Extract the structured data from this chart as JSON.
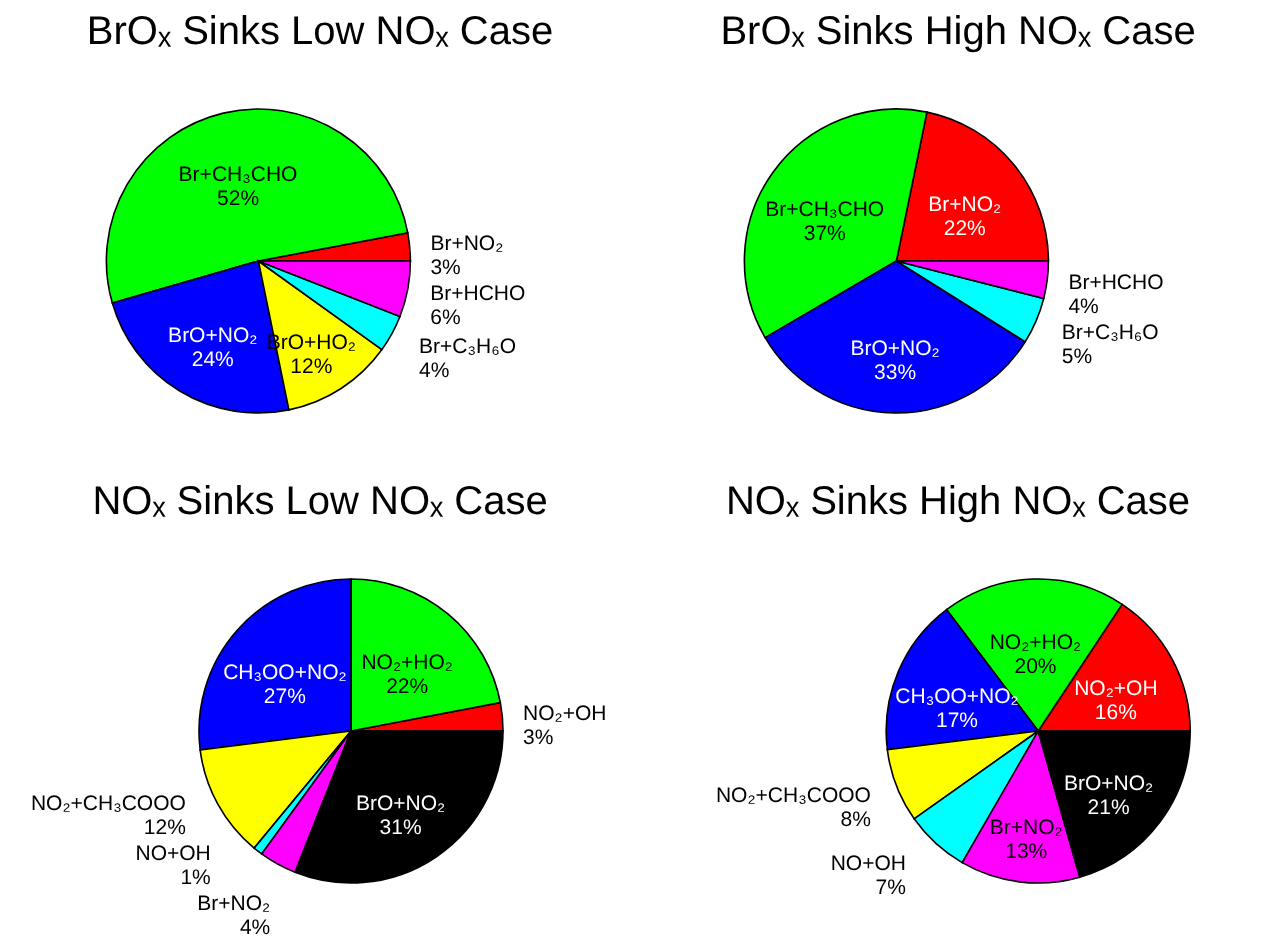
{
  "chart_data": [
    {
      "type": "pie",
      "title": "BrOₓ Sinks Low NOₓ Case",
      "categories": [
        "Br+NO₂",
        "Br+CH₃CHO",
        "BrO+NO₂",
        "BrO+HO₂",
        "Br+C₃H₆O",
        "Br+HCHO"
      ],
      "values": [
        3,
        52,
        24,
        12,
        4,
        6
      ],
      "value_labels": [
        "3%",
        "52%",
        "24%",
        "12%",
        "4%",
        "6%"
      ],
      "colors": [
        "#ff0000",
        "#00ff00",
        "#0000ff",
        "#ffff00",
        "#00ffff",
        "#ff00ff"
      ]
    },
    {
      "type": "pie",
      "title": "BrOₓ Sinks High NOₓ Case",
      "categories": [
        "Br+NO₂",
        "Br+CH₃CHO",
        "BrO+NO₂",
        "Br+C₃H₆O",
        "Br+HCHO"
      ],
      "values": [
        22,
        37,
        33,
        5,
        4
      ],
      "value_labels": [
        "22%",
        "37%",
        "33%",
        "5%",
        "4%"
      ],
      "colors": [
        "#ff0000",
        "#00ff00",
        "#0000ff",
        "#00ffff",
        "#ff00ff"
      ]
    },
    {
      "type": "pie",
      "title": "NOₓ Sinks Low NOₓ Case",
      "categories": [
        "NO₂+OH",
        "NO₂+HO₂",
        "CH₃OO+NO₂",
        "NO₂+CH₃COOO",
        "NO+OH",
        "Br+NO₂",
        "BrO+NO₂"
      ],
      "values": [
        3,
        22,
        27,
        12,
        1,
        4,
        31
      ],
      "value_labels": [
        "3%",
        "22%",
        "27%",
        "12%",
        "1%",
        "4%",
        "31%"
      ],
      "colors": [
        "#ff0000",
        "#00ff00",
        "#0000ff",
        "#ffff00",
        "#00ffff",
        "#ff00ff",
        "#000000"
      ]
    },
    {
      "type": "pie",
      "title": "NOₓ Sinks High NOₓ Case",
      "categories": [
        "NO₂+OH",
        "NO₂+HO₂",
        "CH₃OO+NO₂",
        "NO₂+CH₃COOO",
        "NO+OH",
        "Br+NO₂",
        "BrO+NO₂"
      ],
      "values": [
        16,
        20,
        17,
        8,
        7,
        13,
        21
      ],
      "value_labels": [
        "16%",
        "20%",
        "17%",
        "8%",
        "7%",
        "13%",
        "21%"
      ],
      "colors": [
        "#ff0000",
        "#00ff00",
        "#0000ff",
        "#ffff00",
        "#00ffff",
        "#ff00ff",
        "#000000"
      ]
    }
  ]
}
